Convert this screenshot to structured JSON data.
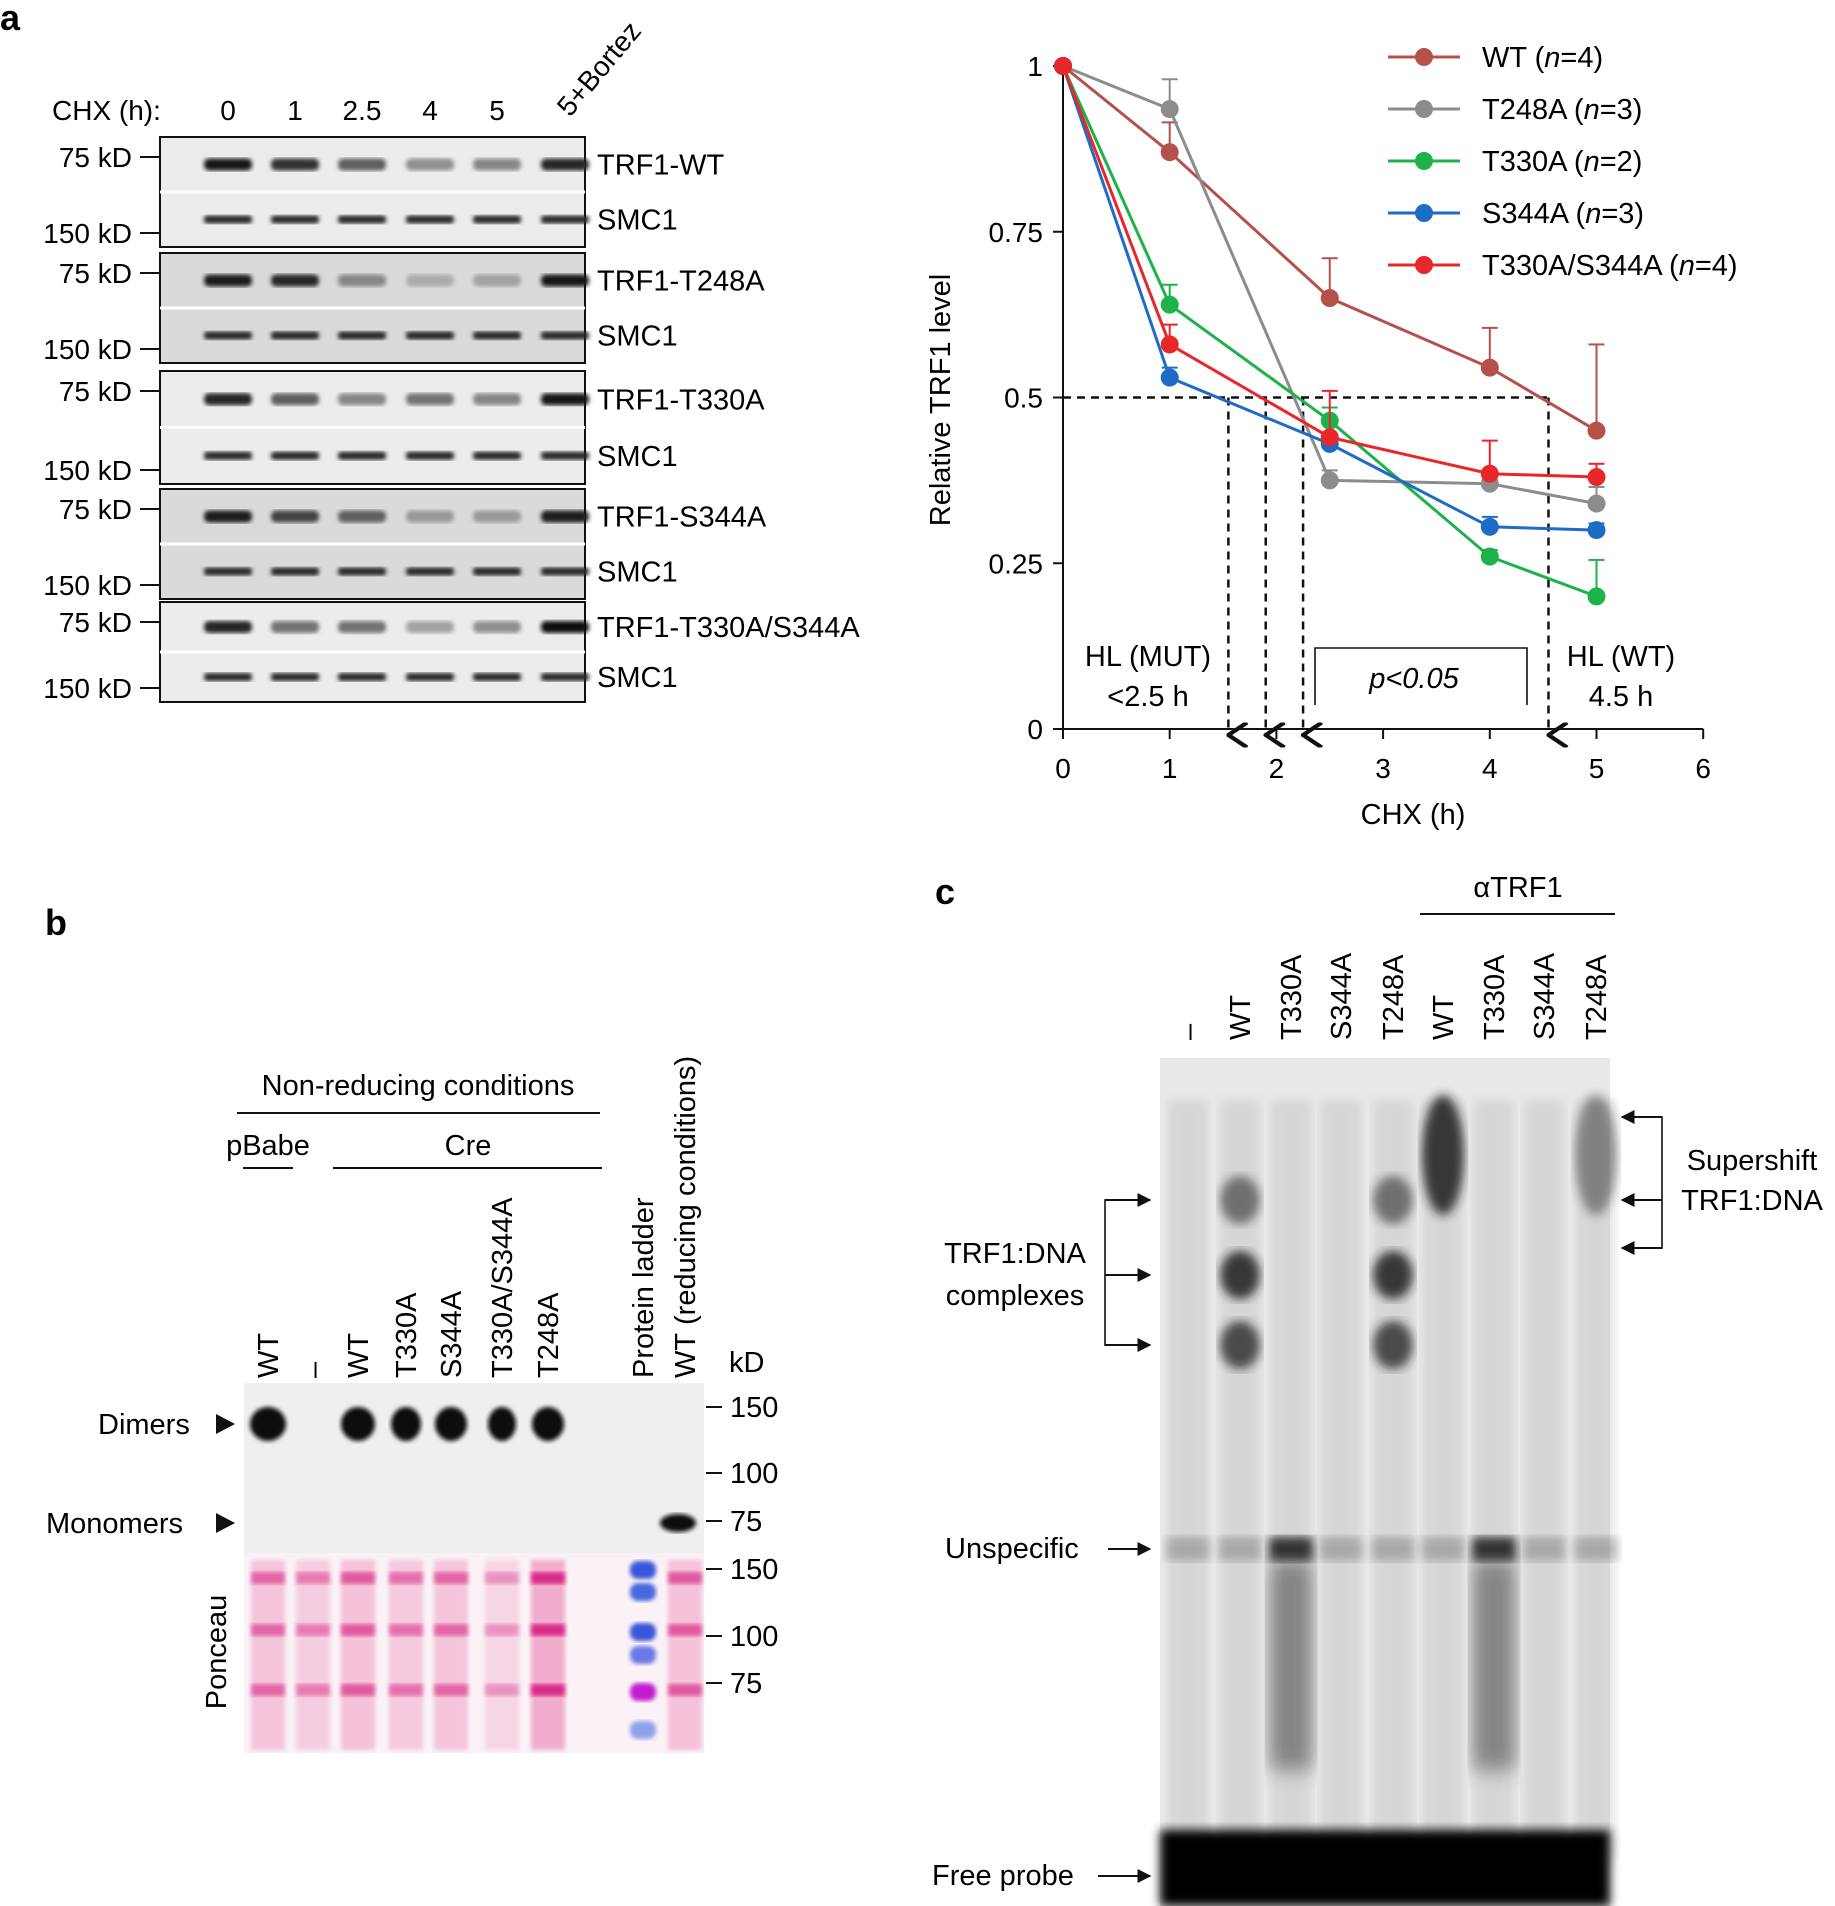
{
  "panel_a": {
    "letter": "a",
    "blot": {
      "treatment_label": "CHX (h):",
      "timepoints": [
        "0",
        "1",
        "2.5",
        "4",
        "5",
        "5+Bortez"
      ],
      "blocks": [
        {
          "target": "TRF1-WT",
          "loading": "SMC1",
          "top_kd": "75 kD",
          "bottom_kd": "150 kD",
          "intensities": [
            0.95,
            0.8,
            0.55,
            0.3,
            0.35,
            0.85
          ]
        },
        {
          "target": "TRF1-T248A",
          "loading": "SMC1",
          "top_kd": "75 kD",
          "bottom_kd": "150 kD",
          "intensities": [
            0.9,
            0.85,
            0.35,
            0.15,
            0.2,
            0.95
          ]
        },
        {
          "target": "TRF1-T330A",
          "loading": "SMC1",
          "top_kd": "75 kD",
          "bottom_kd": "150 kD",
          "intensities": [
            0.85,
            0.55,
            0.35,
            0.45,
            0.35,
            0.95
          ]
        },
        {
          "target": "TRF1-S344A",
          "loading": "SMC1",
          "top_kd": "75 kD",
          "bottom_kd": "150 kD",
          "intensities": [
            0.9,
            0.7,
            0.55,
            0.25,
            0.25,
            0.9
          ]
        },
        {
          "target": "TRF1-T330A/S344A",
          "loading": "SMC1",
          "top_kd": "75 kD",
          "bottom_kd": "150 kD",
          "intensities": [
            0.85,
            0.45,
            0.45,
            0.2,
            0.3,
            1.0
          ]
        }
      ]
    }
  },
  "chart_data": {
    "type": "line",
    "xlabel": "CHX (h)",
    "ylabel": "Relative TRF1 level",
    "xlim": [
      0,
      6
    ],
    "ylim": [
      0,
      1
    ],
    "xticks": [
      "0",
      "1",
      "2",
      "3",
      "4",
      "5",
      "6"
    ],
    "yticks": [
      "0",
      "0.25",
      "0.5",
      "0.75",
      "1"
    ],
    "legend_position": "top-right",
    "series": [
      {
        "name": "WT",
        "n": "(n=4)",
        "color": "#b5504a",
        "x": [
          0,
          1,
          2.5,
          4,
          5
        ],
        "y": [
          1.0,
          0.87,
          0.65,
          0.545,
          0.45
        ],
        "err": [
          0,
          0.045,
          0.06,
          0.06,
          0.13
        ]
      },
      {
        "name": "T248A",
        "n": "(n=3)",
        "color": "#8c8c8c",
        "x": [
          0,
          1,
          2.5,
          4,
          5
        ],
        "y": [
          1.0,
          0.935,
          0.375,
          0.37,
          0.34
        ],
        "err": [
          0,
          0.045,
          0.015,
          0.015,
          0.025
        ]
      },
      {
        "name": "T330A",
        "n": "(n=2)",
        "color": "#1db34a",
        "x": [
          0,
          1,
          2.5,
          4,
          5
        ],
        "y": [
          1.0,
          0.64,
          0.465,
          0.26,
          0.2
        ],
        "err": [
          0,
          0.03,
          0.02,
          0.01,
          0.055
        ]
      },
      {
        "name": "S344A",
        "n": "(n=3)",
        "color": "#1f6cc6",
        "x": [
          0,
          1,
          2.5,
          4,
          5
        ],
        "y": [
          1.0,
          0.53,
          0.43,
          0.305,
          0.3
        ],
        "err": [
          0,
          0.015,
          0.015,
          0.015,
          0.01
        ]
      },
      {
        "name": "T330A/S344A",
        "n": "(n=4)",
        "color": "#e8272a",
        "x": [
          0,
          1,
          2.5,
          4,
          5
        ],
        "y": [
          1.0,
          0.58,
          0.44,
          0.385,
          0.38
        ],
        "err": [
          0,
          0.03,
          0.07,
          0.05,
          0.02
        ]
      }
    ],
    "annotations": {
      "hl_mut_line1": "HL (MUT)",
      "hl_mut_line2": "<2.5 h",
      "hl_wt_line1": "HL (WT)",
      "hl_wt_line2": "4.5 h",
      "pvalue": "p<0.05",
      "half_level": 0.5,
      "arrow_x": [
        1.55,
        1.9,
        2.25,
        4.55
      ]
    }
  },
  "panel_b": {
    "letter": "b",
    "header": "Non-reducing conditions",
    "group_pbabe": "pBabe",
    "group_cre": "Cre",
    "lanes": [
      "WT",
      "–",
      "WT",
      "T330A",
      "S344A",
      "T330A/S344A",
      "T248A",
      "Protein ladder",
      "WT (reducing conditions)"
    ],
    "kd_unit": "kD",
    "kd_blot": [
      "150",
      "100",
      "75"
    ],
    "kd_ponceau": [
      "150",
      "100",
      "75"
    ],
    "dimers": "Dimers",
    "monomers": "Monomers",
    "ponceau": "Ponceau"
  },
  "panel_c": {
    "letter": "c",
    "antibody": "αTRF1",
    "lanes": [
      "–",
      "WT",
      "T330A",
      "S344A",
      "T248A",
      "WT",
      "T330A",
      "S344A",
      "T248A"
    ],
    "complexes_line1": "TRF1:DNA",
    "complexes_line2": "complexes",
    "supershift_line1": "Supershift",
    "supershift_line2": "TRF1:DNA",
    "unspecific": "Unspecific",
    "free_probe": "Free probe"
  }
}
